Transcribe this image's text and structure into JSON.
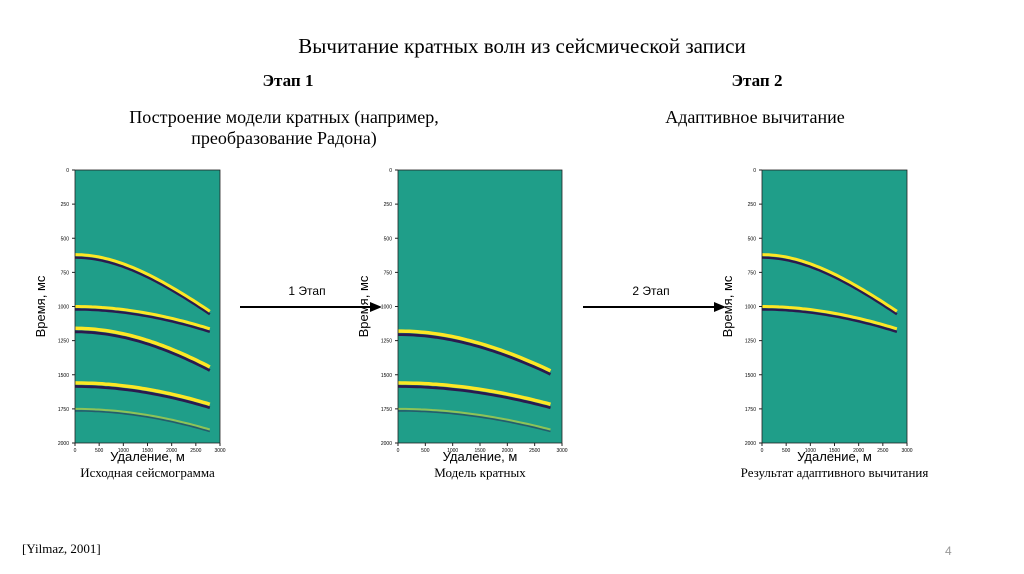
{
  "title": "Вычитание кратных волн из сейсмической записи",
  "steps": [
    {
      "heading": "Этап 1",
      "text_lines": [
        "Построение модели кратных (например,",
        "преобразование Радона)"
      ]
    },
    {
      "heading": "Этап 2",
      "text_lines": [
        "Адаптивное вычитание"
      ]
    }
  ],
  "panels": [
    {
      "y_label": "Время, мс",
      "x_label": "Удаление, м",
      "caption": "Исходная сейсмограмма",
      "yticks": [
        0,
        250,
        500,
        750,
        1000,
        1250,
        1500,
        1750,
        2000
      ],
      "xticks": [
        0,
        500,
        1000,
        1500,
        2000,
        2500,
        3000
      ]
    },
    {
      "y_label": "Время, мс",
      "x_label": "Удаление, м",
      "caption": "Модель кратных",
      "yticks": [
        0,
        250,
        500,
        750,
        1000,
        1250,
        1500,
        1750,
        2000
      ],
      "xticks": [
        0,
        500,
        1000,
        1500,
        2000,
        2500,
        3000
      ]
    },
    {
      "y_label": "Время, мс",
      "x_label": "Удаление, м",
      "caption": "Результат адаптивного вычитания",
      "yticks": [
        0,
        250,
        500,
        750,
        1000,
        1250,
        1500,
        1750,
        2000
      ],
      "xticks": [
        0,
        500,
        1000,
        1500,
        2000,
        2500,
        3000
      ]
    }
  ],
  "arrows": [
    {
      "label": "1 Этап"
    },
    {
      "label": "2 Этап"
    }
  ],
  "citation": "[Yilmaz, 2001]",
  "page_number": "4"
}
